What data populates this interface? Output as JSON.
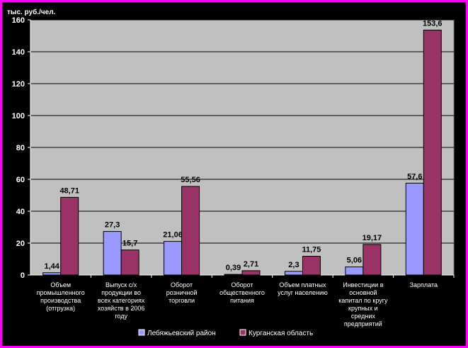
{
  "chart_data": {
    "type": "bar",
    "ylabel": "тыс. руб./чел.",
    "ylim": [
      0,
      160
    ],
    "yticks": [
      0,
      20,
      40,
      60,
      80,
      100,
      120,
      140,
      160
    ],
    "grid": true,
    "legend_position": "bottom",
    "categories": [
      [
        "Объем",
        "промышленного",
        "производства",
        "(отгрузка)"
      ],
      [
        "Выпуск с/х",
        "продукции во",
        "всех категориях",
        "хозяйств в 2006",
        "году"
      ],
      [
        "Оборот",
        "розничной",
        "торговли"
      ],
      [
        "Оборот",
        "общественного",
        "питания"
      ],
      [
        "Объем платных",
        "услуг населению"
      ],
      [
        "Инвестиции в",
        "основной",
        "капитал по кругу",
        "крупных и",
        "средних",
        "предприятий"
      ],
      [
        "Зарплата"
      ]
    ],
    "series": [
      {
        "name": "Лебяжьевский район",
        "color": "#9999ff",
        "values": [
          1.44,
          27.3,
          21.06,
          0.39,
          2.3,
          5.06,
          57.6
        ],
        "labels": [
          "1,44",
          "27,3",
          "21,06",
          "0,39",
          "2,3",
          "5,06",
          "57,6"
        ]
      },
      {
        "name": "Курганская область",
        "color": "#993366",
        "values": [
          48.71,
          15.7,
          55.56,
          2.71,
          11.75,
          19.17,
          153.6
        ],
        "labels": [
          "48,71",
          "15,7",
          "55,56",
          "2,71",
          "11,75",
          "19,17",
          "153,6"
        ]
      }
    ]
  }
}
